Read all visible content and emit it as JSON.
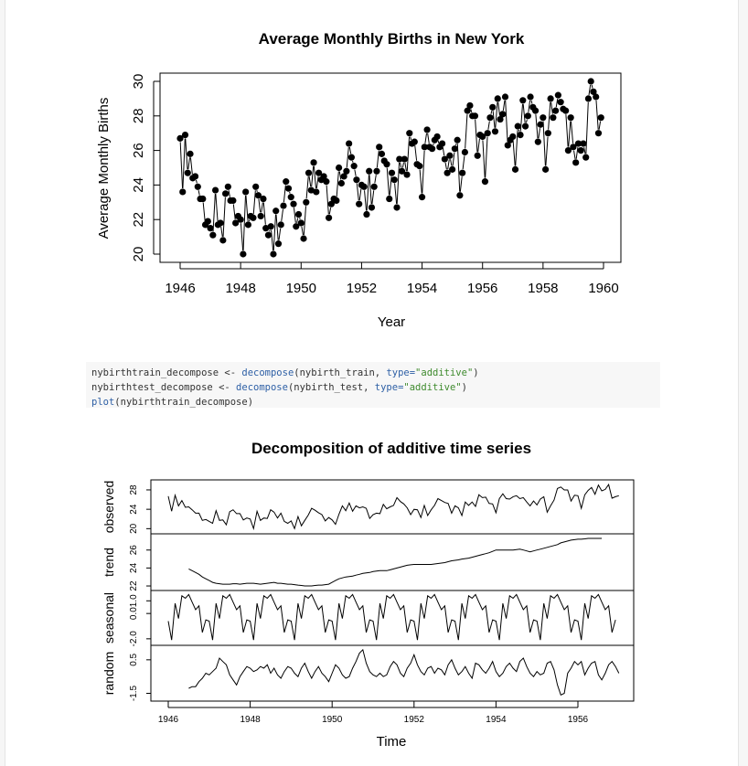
{
  "chart_data": [
    {
      "type": "scatter",
      "title": "Average Monthly Births in New York",
      "xlabel": "Year",
      "ylabel": "Average Monthly Births",
      "xlim": [
        1946,
        1960
      ],
      "ylim": [
        20,
        30
      ],
      "xticks": [
        "1946",
        "1948",
        "1950",
        "1952",
        "1954",
        "1956",
        "1958",
        "1960"
      ],
      "yticks": [
        "20",
        "22",
        "24",
        "26",
        "28",
        "30"
      ],
      "x_start": 1946.0,
      "x_step": 0.08333,
      "values": [
        26.7,
        23.6,
        26.9,
        24.7,
        25.8,
        24.4,
        24.5,
        23.9,
        23.2,
        23.2,
        21.7,
        21.9,
        21.5,
        21.1,
        23.7,
        21.7,
        21.8,
        20.8,
        23.5,
        23.9,
        23.1,
        23.1,
        21.8,
        22.2,
        22.0,
        20.0,
        23.6,
        21.7,
        22.2,
        22.1,
        23.9,
        23.4,
        22.2,
        23.2,
        21.5,
        21.1,
        21.6,
        20.0,
        22.5,
        20.6,
        21.7,
        22.8,
        24.2,
        23.8,
        23.3,
        22.9,
        21.6,
        22.3,
        21.8,
        20.9,
        23.0,
        24.7,
        23.7,
        25.3,
        23.6,
        24.7,
        24.3,
        24.5,
        24.2,
        22.1,
        22.9,
        23.2,
        23.1,
        25.0,
        24.1,
        24.5,
        24.8,
        26.4,
        25.6,
        25.1,
        24.3,
        22.9,
        24.0,
        23.9,
        22.3,
        24.8,
        22.7,
        23.9,
        24.8,
        26.2,
        25.8,
        25.4,
        25.2,
        23.2,
        24.7,
        24.3,
        22.7,
        25.5,
        24.8,
        25.5,
        24.6,
        27.0,
        26.4,
        26.5,
        25.2,
        25.1,
        23.3,
        26.2,
        27.2,
        26.2,
        26.1,
        26.6,
        26.8,
        26.2,
        26.4,
        25.5,
        24.7,
        25.7,
        24.9,
        26.1,
        26.6,
        23.4,
        24.7,
        25.9,
        28.3,
        28.6,
        28.0,
        28.0,
        25.7,
        26.9,
        26.8,
        24.2,
        27.0,
        27.9,
        28.5,
        27.1,
        29.0,
        27.8,
        28.1,
        29.1,
        26.3,
        26.6,
        26.8,
        24.9,
        27.4,
        26.9,
        28.9,
        27.4,
        28.0,
        29.1,
        28.5,
        28.3,
        26.5,
        27.5,
        27.9,
        24.9,
        27.0,
        29.0,
        27.9,
        28.3,
        29.2,
        28.8,
        28.4,
        28.3,
        26.0,
        27.9,
        26.2,
        25.3,
        26.4,
        26.0,
        26.4,
        25.6,
        29.0,
        30.0,
        29.4,
        29.1,
        27.0,
        27.9
      ]
    },
    {
      "type": "line",
      "title": "Decomposition of additive time series",
      "xlabel": "Time",
      "xlim": [
        1946,
        1957
      ],
      "xticks": [
        "1946",
        "1948",
        "1950",
        "1952",
        "1954",
        "1956"
      ],
      "panels": [
        {
          "name": "observed",
          "ylim": [
            19.5,
            29.5
          ],
          "yticks": [
            "20",
            "24",
            "28"
          ],
          "x_start": 1946.0,
          "values": [
            26.7,
            23.6,
            26.9,
            24.7,
            25.8,
            24.4,
            24.5,
            23.9,
            23.2,
            23.2,
            21.7,
            21.9,
            21.5,
            21.1,
            23.7,
            21.7,
            21.8,
            20.8,
            23.5,
            23.9,
            23.1,
            23.1,
            21.8,
            22.2,
            22.0,
            20.0,
            23.6,
            21.7,
            22.2,
            22.1,
            23.9,
            23.4,
            22.2,
            23.2,
            21.5,
            21.1,
            21.6,
            20.0,
            22.5,
            20.6,
            21.7,
            22.8,
            24.2,
            23.8,
            23.3,
            22.9,
            21.6,
            22.3,
            21.8,
            20.9,
            23.0,
            24.7,
            23.7,
            25.3,
            23.6,
            24.7,
            24.3,
            24.5,
            24.2,
            22.1,
            22.9,
            23.2,
            23.1,
            25.0,
            24.1,
            24.5,
            24.8,
            26.4,
            25.6,
            25.1,
            24.3,
            22.9,
            24.0,
            23.9,
            22.3,
            24.8,
            22.7,
            23.9,
            24.8,
            26.2,
            25.8,
            25.4,
            25.2,
            23.2,
            24.7,
            24.3,
            22.7,
            25.5,
            24.8,
            25.5,
            24.6,
            27.0,
            26.4,
            26.5,
            25.2,
            25.1,
            23.3,
            26.2,
            27.2,
            26.2,
            26.1,
            26.6,
            26.8,
            26.2,
            26.4,
            25.5,
            24.7,
            25.7,
            24.9,
            26.1,
            26.6,
            23.4,
            24.7,
            25.9,
            28.3,
            28.6,
            28.0,
            28.0,
            25.7,
            26.9,
            26.8,
            24.2,
            27.0,
            27.9,
            28.5,
            27.1,
            29.0,
            27.8,
            28.1,
            29.1,
            26.3,
            26.6,
            26.8
          ]
        },
        {
          "name": "trend",
          "ylim": [
            21.8,
            27.5
          ],
          "yticks": [
            "22",
            "24",
            "26"
          ],
          "x_start": 1946.5,
          "values": [
            23.9,
            23.7,
            23.5,
            23.3,
            23.0,
            22.8,
            22.6,
            22.4,
            22.3,
            22.25,
            22.2,
            22.2,
            22.2,
            22.25,
            22.25,
            22.2,
            22.25,
            22.3,
            22.3,
            22.3,
            22.25,
            22.2,
            22.25,
            22.3,
            22.35,
            22.4,
            22.3,
            22.3,
            22.25,
            22.2,
            22.2,
            22.15,
            22.1,
            22.05,
            22.0,
            22.0,
            22.0,
            22.05,
            22.1,
            22.1,
            22.15,
            22.2,
            22.4,
            22.6,
            22.8,
            22.9,
            23.0,
            23.05,
            23.1,
            23.2,
            23.3,
            23.4,
            23.45,
            23.5,
            23.6,
            23.65,
            23.7,
            23.7,
            23.7,
            23.8,
            23.9,
            24.0,
            24.1,
            24.2,
            24.3,
            24.35,
            24.4,
            24.4,
            24.4,
            24.4,
            24.4,
            24.4,
            24.45,
            24.5,
            24.55,
            24.6,
            24.7,
            24.8,
            24.85,
            24.9,
            25.0,
            25.05,
            25.1,
            25.2,
            25.3,
            25.4,
            25.5,
            25.6,
            25.7,
            25.85,
            26.0,
            26.0,
            26.0,
            26.0,
            26.0,
            26.0,
            26.05,
            26.1,
            26.0,
            25.9,
            25.8,
            25.9,
            26.0,
            26.1,
            26.2,
            26.3,
            26.4,
            26.5,
            26.6,
            26.8,
            26.9,
            27.0,
            27.1,
            27.15,
            27.2,
            27.2,
            27.25,
            27.3,
            27.3,
            27.3,
            27.3,
            27.3
          ]
        },
        {
          "name": "seasonal",
          "ylim": [
            -2.3,
            1.6
          ],
          "yticks": [
            "-2.0",
            "0.0",
            "1.0"
          ],
          "x_start": 1946.0,
          "pattern": [
            -0.6,
            -2.1,
            0.8,
            -0.4,
            1.4,
            1.2,
            1.5,
            0.9,
            0.3,
            0.6,
            -1.5,
            -0.5
          ]
        },
        {
          "name": "random",
          "ylim": [
            -1.8,
            1.2
          ],
          "yticks": [
            "-1.5",
            "0.5"
          ],
          "x_start": 1946.5,
          "values": [
            -1.2,
            -1.1,
            -1.1,
            -0.8,
            -0.6,
            -0.3,
            -0.4,
            -0.2,
            0.0,
            0.6,
            0.4,
            0.2,
            -0.4,
            -0.7,
            -1.0,
            -0.5,
            -0.2,
            0.1,
            0.0,
            -0.2,
            -0.1,
            0.1,
            0.0,
            0.2,
            -0.3,
            0.0,
            -0.4,
            -0.6,
            -0.2,
            0.1,
            0.0,
            -0.3,
            -0.5,
            0.0,
            0.3,
            -0.2,
            -0.6,
            -0.2,
            0.1,
            -0.3,
            -0.5,
            -0.8,
            -0.3,
            0.2,
            0.0,
            -0.4,
            -0.6,
            -0.5,
            0.0,
            0.4,
            0.9,
            1.1,
            0.3,
            -0.2,
            -0.4,
            -0.5,
            -0.3,
            -0.5,
            -0.4,
            0.1,
            0.4,
            0.2,
            -0.3,
            -0.5,
            0.0,
            0.3,
            0.8,
            0.2,
            -0.2,
            -0.4,
            0.0,
            0.1,
            -0.3,
            0.0,
            -0.1,
            -0.4,
            0.2,
            0.5,
            0.0,
            -0.4,
            -0.2,
            0.1,
            -0.3,
            -0.6,
            0.3,
            0.2,
            -0.1,
            -0.3,
            0.0,
            0.4,
            -0.2,
            -0.5,
            -0.3,
            0.1,
            0.3,
            0.0,
            -0.2,
            0.4,
            0.6,
            0.1,
            -0.3,
            -0.5,
            -0.2,
            -0.4,
            -0.3,
            0.3,
            0.4,
            -0.1,
            -1.0,
            -1.6,
            -1.5,
            -0.3,
            0.0,
            0.4,
            0.2,
            0.4,
            -0.4,
            0.0,
            0.3,
            0.4,
            -0.4,
            -0.7,
            -0.3,
            0.2,
            0.4,
            0.1,
            -0.3
          ]
        }
      ]
    }
  ],
  "code": {
    "l1_a": "nybirthtrain_decompose <- ",
    "l1_fn": "decompose",
    "l1_b": "(nybirth_train, ",
    "l1_kw": "type=",
    "l1_str": "\"additive\"",
    "l1_c": ")",
    "l2_a": "nybirthtest_decompose <- ",
    "l2_fn": "decompose",
    "l2_b": "(nybirth_test, ",
    "l2_kw": "type=",
    "l2_str": "\"additive\"",
    "l2_c": ")",
    "l3_fn": "plot",
    "l3_b": "(nybirthtrain_decompose)"
  }
}
